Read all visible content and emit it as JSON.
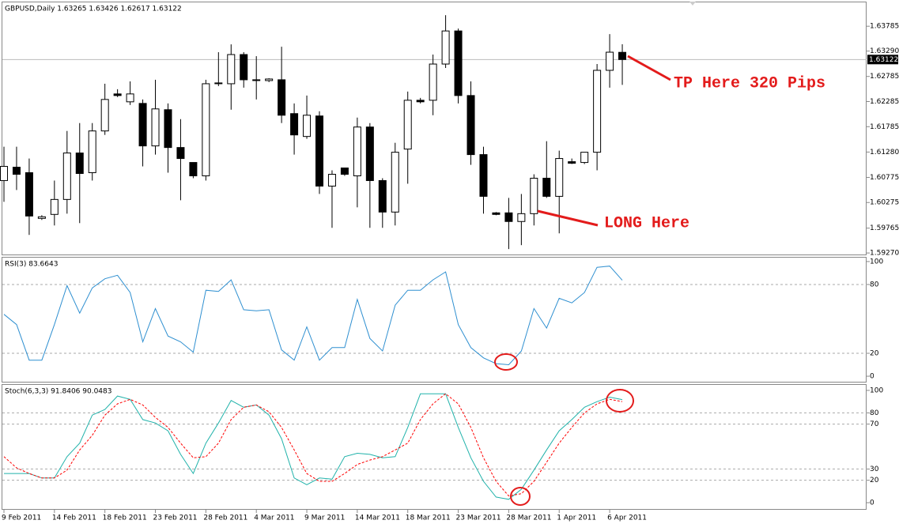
{
  "chart_data": [
    {
      "type": "candlestick",
      "title": "GBPUSD,Daily  1.63265 1.63426 1.62617 1.63122",
      "categories": [
        "9 Feb 2011",
        null,
        null,
        null,
        "14 Feb 2011",
        null,
        null,
        null,
        "18 Feb 2011",
        null,
        null,
        null,
        "23 Feb 2011",
        null,
        null,
        null,
        "28 Feb 2011",
        null,
        null,
        null,
        "4 Mar 2011",
        null,
        null,
        null,
        "9 Mar 2011",
        null,
        null,
        null,
        "14 Mar 2011",
        null,
        null,
        null,
        "18 Mar 2011",
        null,
        null,
        null,
        "23 Mar 2011",
        null,
        null,
        null,
        "28 Mar 2011",
        null,
        null,
        null,
        "1 Apr 2011",
        null,
        null,
        null,
        "6 Apr 2011",
        null
      ],
      "open": [
        1.60712,
        1.60978,
        1.60869,
        1.59959,
        1.60038,
        1.60336,
        1.61261,
        1.60869,
        1.617,
        1.62437,
        1.6228,
        1.62248,
        1.61402,
        1.62123,
        1.6137,
        1.61072,
        1.60806,
        1.6264,
        1.6264,
        1.63221,
        1.62719,
        1.62703,
        1.62719,
        1.62045,
        1.6159,
        1.61998,
        1.60602,
        1.60963,
        1.60806,
        1.61778,
        1.60712,
        1.60085,
        1.61339,
        1.62311,
        1.62311,
        1.63032,
        1.63691,
        1.62405,
        1.61229,
        1.60069,
        1.60069,
        1.59897,
        1.60053,
        1.60759,
        1.60398,
        1.61088,
        1.61072,
        1.61276,
        1.62907,
        1.63265
      ],
      "high": [
        1.61386,
        1.61386,
        1.61151,
        1.60022,
        1.60712,
        1.617,
        1.61857,
        1.61857,
        1.6264,
        1.62531,
        1.62687,
        1.62327,
        1.62719,
        1.62248,
        1.61935,
        1.61072,
        1.62719,
        1.63268,
        1.63424,
        1.63268,
        1.63189,
        1.6275,
        1.63377,
        1.62248,
        1.62405,
        1.62092,
        1.60916,
        1.60963,
        1.61966,
        1.61857,
        1.60759,
        1.61464,
        1.62484,
        1.62358,
        1.63221,
        1.64005,
        1.63738,
        1.62687,
        1.61386,
        1.60085,
        1.60367,
        1.60445,
        1.60837,
        1.61496,
        1.61308,
        1.61151,
        1.61276,
        1.63032,
        1.63628,
        1.63426
      ],
      "low": [
        1.60289,
        1.60524,
        1.5963,
        1.59928,
        1.59818,
        1.60053,
        1.59865,
        1.60712,
        1.61621,
        1.62374,
        1.62217,
        1.60994,
        1.61229,
        1.60869,
        1.6032,
        1.60759,
        1.60712,
        1.62593,
        1.62123,
        1.62562,
        1.62327,
        1.62672,
        1.61857,
        1.61229,
        1.61543,
        1.60445,
        1.59771,
        1.60806,
        1.60179,
        1.59771,
        1.59771,
        1.59818,
        1.60649,
        1.62248,
        1.62013,
        1.62954,
        1.62248,
        1.61025,
        1.60053,
        1.60022,
        1.59348,
        1.59426,
        1.59818,
        1.60367,
        1.59661,
        1.61041,
        1.61041,
        1.60916,
        1.62562,
        1.62617
      ],
      "close": [
        1.60994,
        1.60837,
        1.60006,
        1.59991,
        1.60336,
        1.61261,
        1.60853,
        1.617,
        1.62327,
        1.62405,
        1.62437,
        1.61402,
        1.62139,
        1.6137,
        1.61151,
        1.60806,
        1.6264,
        1.62656,
        1.63221,
        1.62719,
        1.62703,
        1.62734,
        1.62013,
        1.61621,
        1.62013,
        1.60602,
        1.60837,
        1.60837,
        1.61778,
        1.60712,
        1.60085,
        1.61276,
        1.62311,
        1.6228,
        1.63032,
        1.63691,
        1.62405,
        1.61229,
        1.60398,
        1.60038,
        1.59897,
        1.60053,
        1.60759,
        1.60398,
        1.61151,
        1.61057,
        1.61276,
        1.62907,
        1.63268,
        1.63122
      ],
      "ylim": [
        1.5924,
        1.6426
      ],
      "yticks": [
        1.63785,
        {
          "value": 1.6329,
          "label": "1.63290"
        },
        1.62785,
        1.62285,
        1.61785,
        {
          "value": 1.6128,
          "label": "1.61280"
        },
        1.60775,
        1.60275,
        1.59765,
        {
          "value": 1.5927,
          "label": "1.59270"
        }
      ],
      "last_price": {
        "value": 1.63122,
        "label": "1.63122"
      },
      "annotations": [
        "TP Here 320 Pips",
        "LONG Here"
      ]
    },
    {
      "type": "line",
      "title": "RSI(3) 83.6643",
      "series": [
        {
          "color": "#2e8fd0",
          "values": [
            54,
            45,
            14,
            14,
            45,
            79,
            55,
            77,
            85,
            88,
            73,
            30,
            59,
            35,
            30,
            21,
            75,
            74,
            84,
            58,
            57,
            58,
            23,
            14,
            43,
            14,
            25,
            25,
            67,
            33,
            22,
            62,
            75,
            75,
            84,
            91,
            45,
            25,
            16,
            11,
            10,
            22,
            59,
            42,
            68,
            64,
            73,
            95,
            96,
            83.6643
          ]
        }
      ],
      "ylim": [
        -4.8,
        103.4
      ],
      "yticks": [
        100,
        80,
        20,
        0
      ]
    },
    {
      "type": "line",
      "title": "Stoch(6,3,3) 91.8406 90.0483",
      "series": [
        {
          "color": "#20b2aa",
          "values": [
            26,
            26,
            26,
            22,
            22,
            41,
            53,
            78,
            83,
            95,
            92,
            74,
            71,
            64,
            43,
            26,
            53,
            71,
            91,
            85,
            87,
            78,
            57,
            22,
            16,
            22,
            21,
            41,
            44,
            43,
            40,
            41,
            67,
            97,
            97,
            97,
            67,
            40,
            19,
            5,
            3,
            12,
            29,
            47,
            64,
            74,
            85,
            90,
            94,
            91.8406
          ]
        },
        {
          "color": "#ff0000",
          "dashed": true,
          "values": [
            41,
            31,
            26,
            22,
            22,
            29,
            47,
            60,
            78,
            88,
            92,
            87,
            76,
            67,
            53,
            40,
            41,
            53,
            74,
            85,
            87,
            81,
            67,
            47,
            26,
            19,
            19,
            26,
            34,
            38,
            41,
            47,
            53,
            74,
            88,
            97,
            88,
            67,
            40,
            19,
            6,
            8,
            19,
            36,
            53,
            67,
            80,
            88,
            92,
            90.0483
          ]
        }
      ],
      "ylim": [
        -5.6,
        104.9
      ],
      "yticks": [
        100,
        80,
        70,
        30,
        20,
        0
      ]
    }
  ]
}
